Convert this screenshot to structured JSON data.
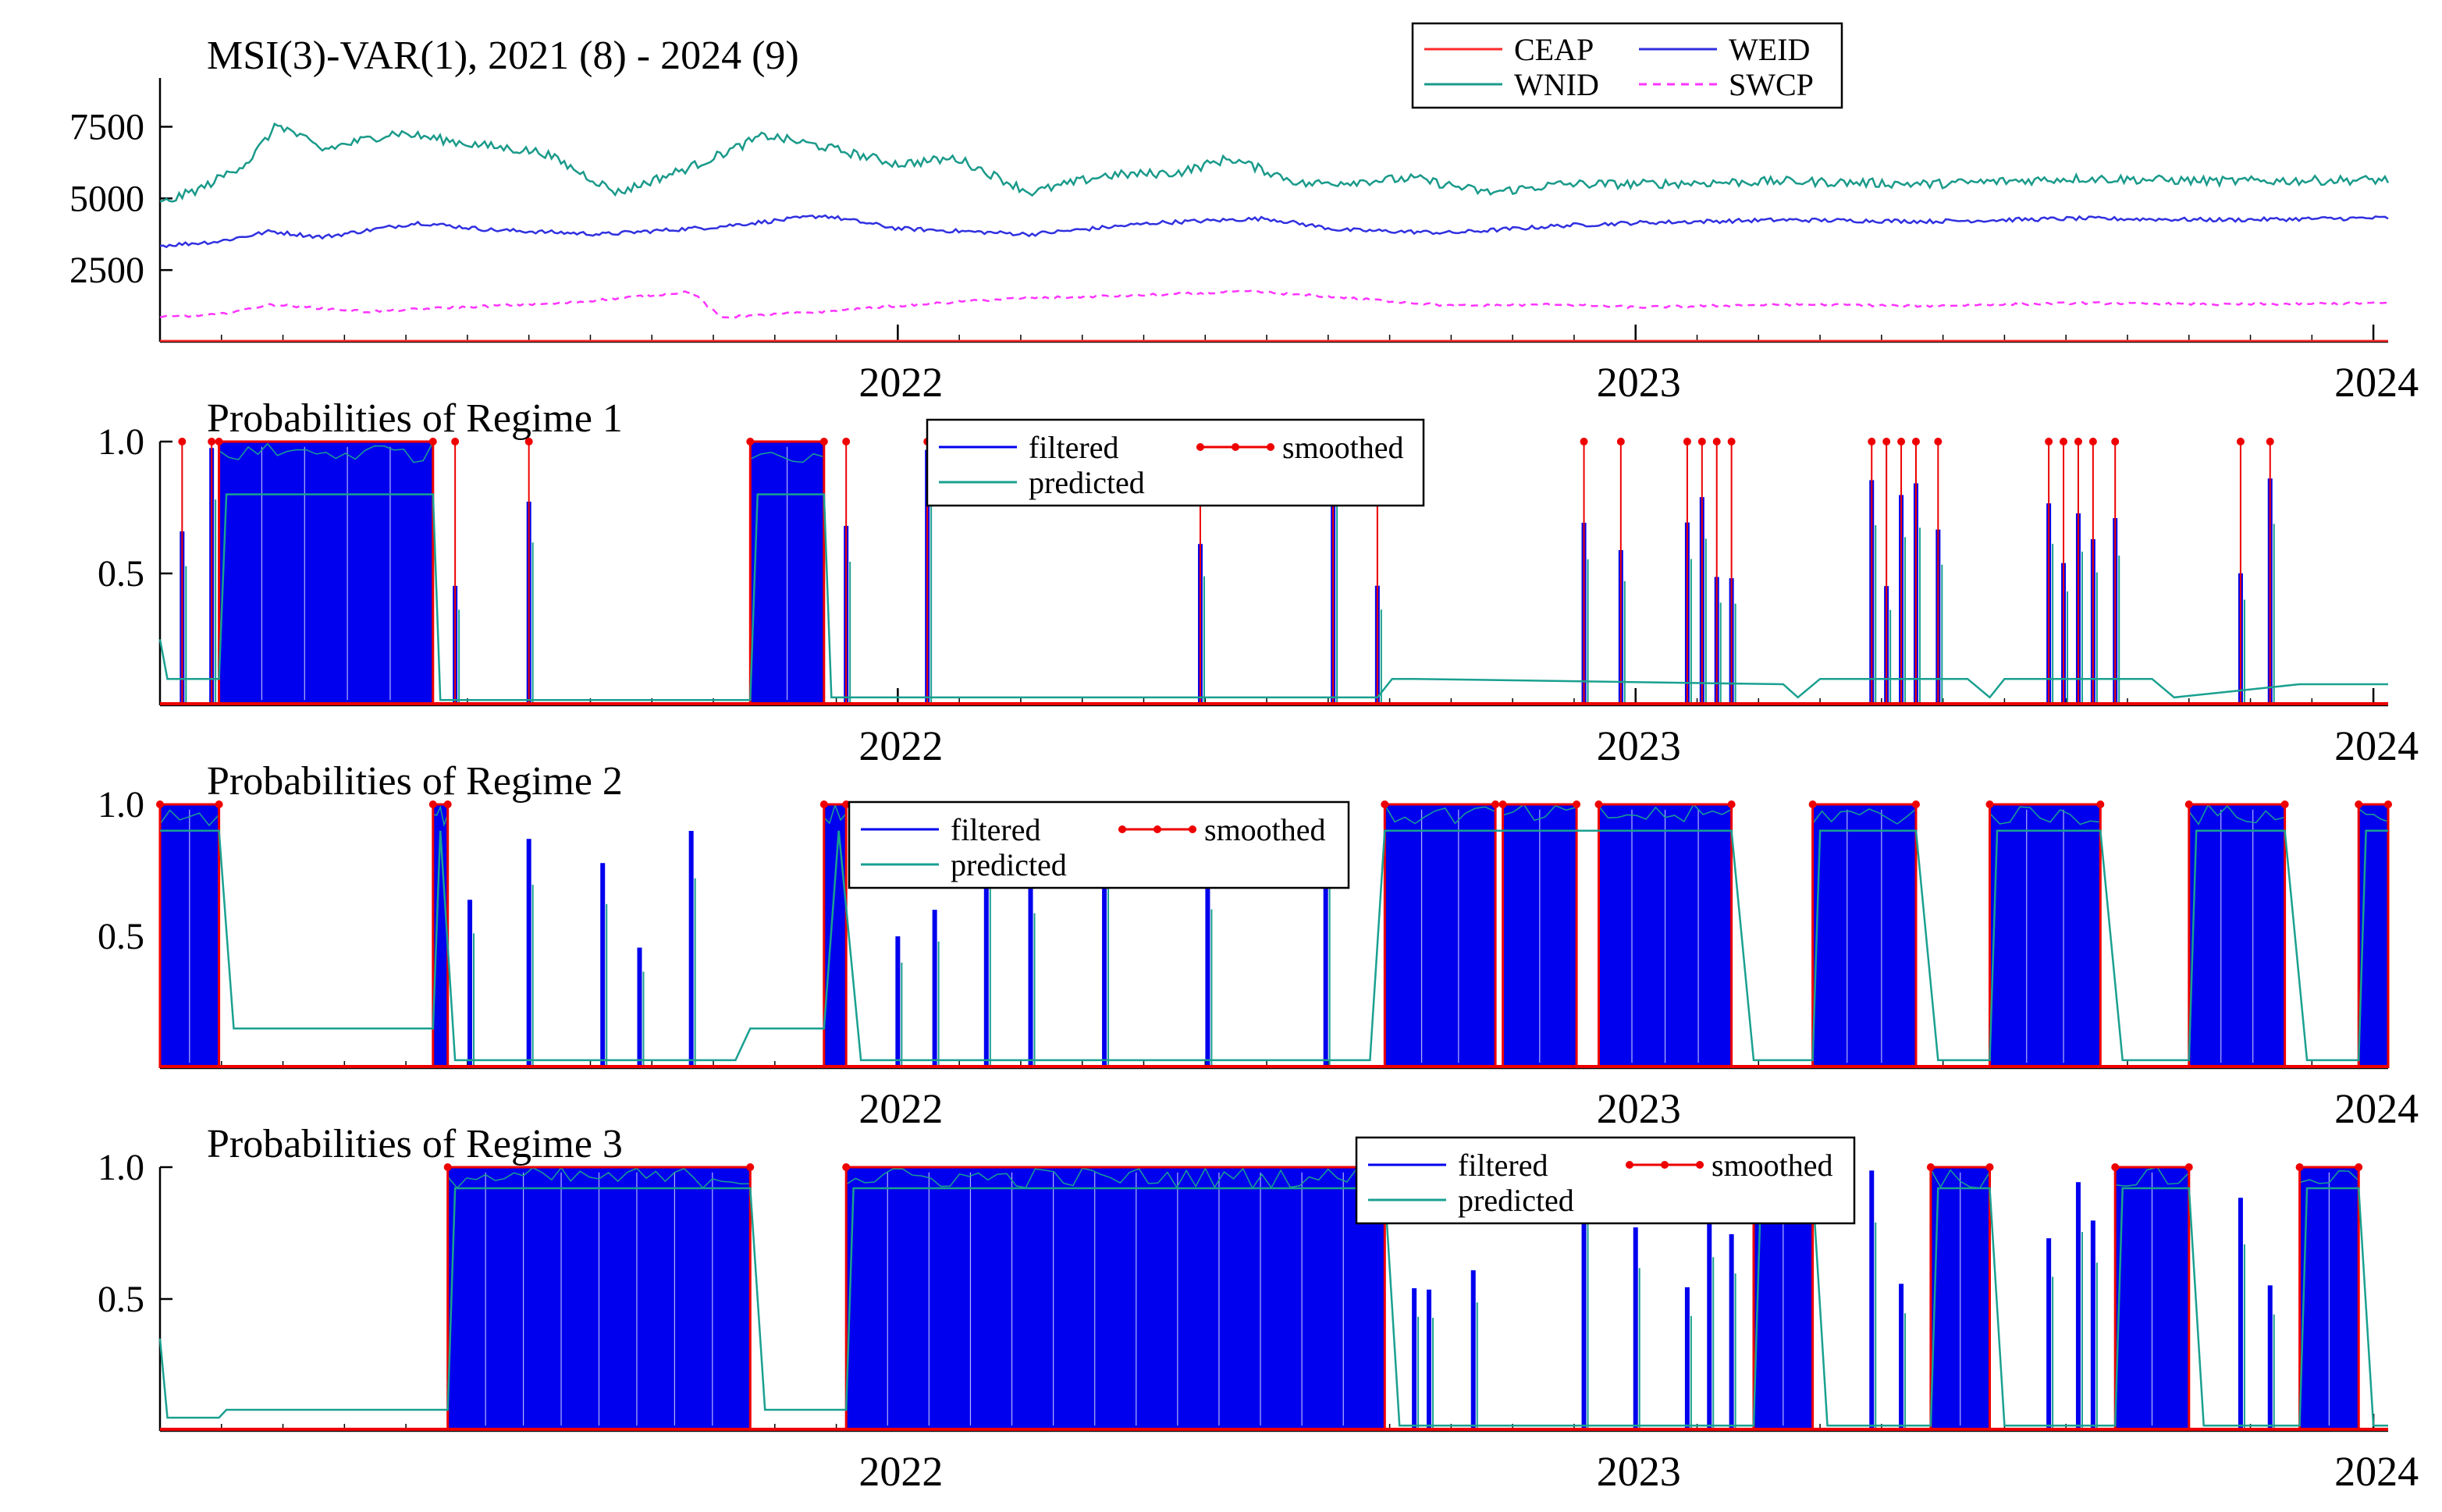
{
  "colors": {
    "ceap": "#ff2a2a",
    "weid": "#3030e0",
    "wnid": "#1a9a8a",
    "swcp": "#ff33ff",
    "filtered": "#0000ee",
    "predicted": "#1aa090",
    "smoothed": "#ee0000",
    "axis": "#000000"
  },
  "chart_data": [
    {
      "type": "line",
      "title": "MSI(3)-VAR(1), 2021 (8) - 2024 (9)",
      "x_ticks": [
        "2022",
        "2023",
        "2024"
      ],
      "x_range": [
        2021.0,
        2024.02
      ],
      "y_ticks": [
        "2500",
        "5000",
        "7500"
      ],
      "y_tick_values": [
        2500,
        5000,
        7500
      ],
      "ylim": [
        0,
        9200
      ],
      "legend_position": "top-center",
      "series": [
        {
          "name": "CEAP",
          "style": "solid",
          "color_key": "ceap",
          "points": [
            [
              2021.0,
              30
            ],
            [
              2022.0,
              30
            ],
            [
              2023.0,
              30
            ],
            [
              2024.02,
              30
            ]
          ]
        },
        {
          "name": "WEID",
          "style": "solid",
          "color_key": "weid",
          "points": [
            [
              2021.0,
              3350
            ],
            [
              2021.08,
              3500
            ],
            [
              2021.15,
              3850
            ],
            [
              2021.22,
              3650
            ],
            [
              2021.35,
              4150
            ],
            [
              2021.45,
              3900
            ],
            [
              2021.6,
              3750
            ],
            [
              2021.75,
              4000
            ],
            [
              2021.9,
              4400
            ],
            [
              2022.0,
              3950
            ],
            [
              2022.18,
              3750
            ],
            [
              2022.35,
              4150
            ],
            [
              2022.5,
              4300
            ],
            [
              2022.6,
              3900
            ],
            [
              2022.75,
              3800
            ],
            [
              2022.9,
              4050
            ],
            [
              2023.0,
              4150
            ],
            [
              2023.2,
              4250
            ],
            [
              2023.4,
              4200
            ],
            [
              2023.6,
              4300
            ],
            [
              2023.8,
              4250
            ],
            [
              2024.02,
              4320
            ]
          ]
        },
        {
          "name": "WNID",
          "style": "solid",
          "color_key": "wnid",
          "points": [
            [
              2021.0,
              4800
            ],
            [
              2021.06,
              5400
            ],
            [
              2021.12,
              6300
            ],
            [
              2021.16,
              7600
            ],
            [
              2021.22,
              6700
            ],
            [
              2021.32,
              7300
            ],
            [
              2021.42,
              6900
            ],
            [
              2021.52,
              6600
            ],
            [
              2021.62,
              5200
            ],
            [
              2021.72,
              6100
            ],
            [
              2021.82,
              7200
            ],
            [
              2021.9,
              6800
            ],
            [
              2022.0,
              6200
            ],
            [
              2022.08,
              6400
            ],
            [
              2022.18,
              5200
            ],
            [
              2022.28,
              5800
            ],
            [
              2022.38,
              5900
            ],
            [
              2022.45,
              6400
            ],
            [
              2022.55,
              5500
            ],
            [
              2022.7,
              5700
            ],
            [
              2022.8,
              5200
            ],
            [
              2022.9,
              5500
            ],
            [
              2023.0,
              5500
            ],
            [
              2023.2,
              5600
            ],
            [
              2023.4,
              5500
            ],
            [
              2023.6,
              5700
            ],
            [
              2023.8,
              5600
            ],
            [
              2024.02,
              5650
            ]
          ]
        },
        {
          "name": "SWCP",
          "style": "dashed",
          "color_key": "swcp",
          "points": [
            [
              2021.0,
              850
            ],
            [
              2021.08,
              950
            ],
            [
              2021.15,
              1300
            ],
            [
              2021.28,
              1050
            ],
            [
              2021.4,
              1200
            ],
            [
              2021.55,
              1350
            ],
            [
              2021.72,
              1750
            ],
            [
              2021.76,
              850
            ],
            [
              2021.9,
              1050
            ],
            [
              2022.0,
              1250
            ],
            [
              2022.15,
              1500
            ],
            [
              2022.3,
              1600
            ],
            [
              2022.48,
              1750
            ],
            [
              2022.6,
              1550
            ],
            [
              2022.75,
              1250
            ],
            [
              2022.9,
              1300
            ],
            [
              2023.0,
              1200
            ],
            [
              2023.2,
              1300
            ],
            [
              2023.4,
              1250
            ],
            [
              2023.6,
              1350
            ],
            [
              2023.8,
              1300
            ],
            [
              2024.02,
              1350
            ]
          ]
        }
      ]
    },
    {
      "type": "area",
      "title": "Probabilities of Regime 1",
      "x_ticks": [
        "2022",
        "2023",
        "2024"
      ],
      "x_range": [
        2021.0,
        2024.02
      ],
      "y_ticks": [
        "0.5",
        "1.0"
      ],
      "y_tick_values": [
        0.5,
        1.0
      ],
      "ylim": [
        0,
        1.0
      ],
      "legend": [
        "filtered",
        "smoothed",
        "predicted"
      ],
      "legend_position": "top-center",
      "regime_blocks": [
        [
          2021.08,
          2021.37
        ],
        [
          2021.8,
          2021.9
        ]
      ],
      "spikes": [
        2021.03,
        2021.07,
        2021.4,
        2021.5,
        2021.93,
        2022.04,
        2022.41,
        2022.59,
        2022.65,
        2022.93,
        2022.98,
        2023.07,
        2023.09,
        2023.11,
        2023.13,
        2023.32,
        2023.34,
        2023.36,
        2023.38,
        2023.41,
        2023.56,
        2023.58,
        2023.6,
        2023.62,
        2023.65,
        2023.82,
        2023.86
      ],
      "predicted_levels": [
        [
          2021.0,
          0.25
        ],
        [
          2021.01,
          0.1
        ],
        [
          2021.08,
          0.1
        ],
        [
          2021.09,
          0.8
        ],
        [
          2021.37,
          0.8
        ],
        [
          2021.38,
          0.02
        ],
        [
          2021.8,
          0.02
        ],
        [
          2021.81,
          0.8
        ],
        [
          2021.9,
          0.8
        ],
        [
          2021.91,
          0.03
        ],
        [
          2022.65,
          0.03
        ],
        [
          2022.67,
          0.1
        ],
        [
          2022.7,
          0.1
        ],
        [
          2023.2,
          0.08
        ],
        [
          2023.22,
          0.03
        ],
        [
          2023.25,
          0.1
        ],
        [
          2023.45,
          0.1
        ],
        [
          2023.48,
          0.03
        ],
        [
          2023.5,
          0.1
        ],
        [
          2023.7,
          0.1
        ],
        [
          2023.73,
          0.03
        ],
        [
          2023.9,
          0.08
        ],
        [
          2024.02,
          0.08
        ]
      ]
    },
    {
      "type": "area",
      "title": "Probabilities of Regime 2",
      "x_ticks": [
        "2022",
        "2023",
        "2024"
      ],
      "x_range": [
        2021.0,
        2024.02
      ],
      "y_ticks": [
        "0.5",
        "1.0"
      ],
      "y_tick_values": [
        0.5,
        1.0
      ],
      "ylim": [
        0,
        1.0
      ],
      "legend": [
        "filtered",
        "smoothed",
        "predicted"
      ],
      "legend_position": "top-center",
      "regime_blocks": [
        [
          2021.0,
          2021.08
        ],
        [
          2021.37,
          2021.39
        ],
        [
          2021.9,
          2021.93
        ],
        [
          2022.66,
          2022.81
        ],
        [
          2022.82,
          2022.92
        ],
        [
          2022.95,
          2023.13
        ],
        [
          2023.24,
          2023.38
        ],
        [
          2023.48,
          2023.63
        ],
        [
          2023.75,
          2023.88
        ],
        [
          2023.98,
          2024.02
        ]
      ],
      "spikes": [
        2021.42,
        2021.5,
        2021.6,
        2021.65,
        2021.72,
        2022.0,
        2022.05,
        2022.12,
        2022.18,
        2022.28,
        2022.42,
        2022.58
      ],
      "predicted_levels": [
        [
          2021.0,
          0.9
        ],
        [
          2021.08,
          0.9
        ],
        [
          2021.1,
          0.15
        ],
        [
          2021.37,
          0.15
        ],
        [
          2021.38,
          0.9
        ],
        [
          2021.4,
          0.03
        ],
        [
          2021.78,
          0.03
        ],
        [
          2021.8,
          0.15
        ],
        [
          2021.9,
          0.15
        ],
        [
          2021.92,
          0.9
        ],
        [
          2021.95,
          0.03
        ],
        [
          2022.64,
          0.03
        ],
        [
          2022.66,
          0.9
        ],
        [
          2023.13,
          0.9
        ],
        [
          2023.16,
          0.03
        ],
        [
          2023.24,
          0.03
        ],
        [
          2023.25,
          0.9
        ],
        [
          2023.38,
          0.9
        ],
        [
          2023.41,
          0.03
        ],
        [
          2023.48,
          0.03
        ],
        [
          2023.49,
          0.9
        ],
        [
          2023.63,
          0.9
        ],
        [
          2023.66,
          0.03
        ],
        [
          2023.75,
          0.03
        ],
        [
          2023.76,
          0.9
        ],
        [
          2023.88,
          0.9
        ],
        [
          2023.91,
          0.03
        ],
        [
          2023.98,
          0.03
        ],
        [
          2023.99,
          0.9
        ],
        [
          2024.02,
          0.9
        ]
      ]
    },
    {
      "type": "area",
      "title": "Probabilities of Regime 3",
      "x_ticks": [
        "2022",
        "2023",
        "2024"
      ],
      "x_range": [
        2021.0,
        2024.02
      ],
      "y_ticks": [
        "0.5",
        "1.0"
      ],
      "y_tick_values": [
        0.5,
        1.0
      ],
      "ylim": [
        0,
        1.0
      ],
      "legend": [
        "filtered",
        "smoothed",
        "predicted"
      ],
      "legend_position": "top-right",
      "regime_blocks": [
        [
          2021.39,
          2021.8
        ],
        [
          2021.93,
          2022.66
        ],
        [
          2023.16,
          2023.24
        ],
        [
          2023.4,
          2023.48
        ],
        [
          2023.65,
          2023.75
        ],
        [
          2023.9,
          2023.98
        ]
      ],
      "spikes": [
        2022.7,
        2022.72,
        2022.78,
        2022.93,
        2023.0,
        2023.07,
        2023.1,
        2023.13,
        2023.32,
        2023.36,
        2023.56,
        2023.6,
        2023.62,
        2023.82,
        2023.86
      ],
      "predicted_levels": [
        [
          2021.0,
          0.35
        ],
        [
          2021.01,
          0.05
        ],
        [
          2021.08,
          0.05
        ],
        [
          2021.09,
          0.08
        ],
        [
          2021.39,
          0.08
        ],
        [
          2021.4,
          0.92
        ],
        [
          2021.8,
          0.92
        ],
        [
          2021.82,
          0.08
        ],
        [
          2021.93,
          0.08
        ],
        [
          2021.94,
          0.92
        ],
        [
          2022.66,
          0.92
        ],
        [
          2022.68,
          0.02
        ],
        [
          2023.16,
          0.02
        ],
        [
          2023.17,
          0.92
        ],
        [
          2023.24,
          0.92
        ],
        [
          2023.26,
          0.02
        ],
        [
          2023.4,
          0.02
        ],
        [
          2023.41,
          0.92
        ],
        [
          2023.48,
          0.92
        ],
        [
          2023.5,
          0.02
        ],
        [
          2023.65,
          0.02
        ],
        [
          2023.66,
          0.92
        ],
        [
          2023.75,
          0.92
        ],
        [
          2023.77,
          0.02
        ],
        [
          2023.9,
          0.02
        ],
        [
          2023.91,
          0.92
        ],
        [
          2023.98,
          0.92
        ],
        [
          2024.0,
          0.02
        ],
        [
          2024.02,
          0.02
        ]
      ]
    }
  ]
}
